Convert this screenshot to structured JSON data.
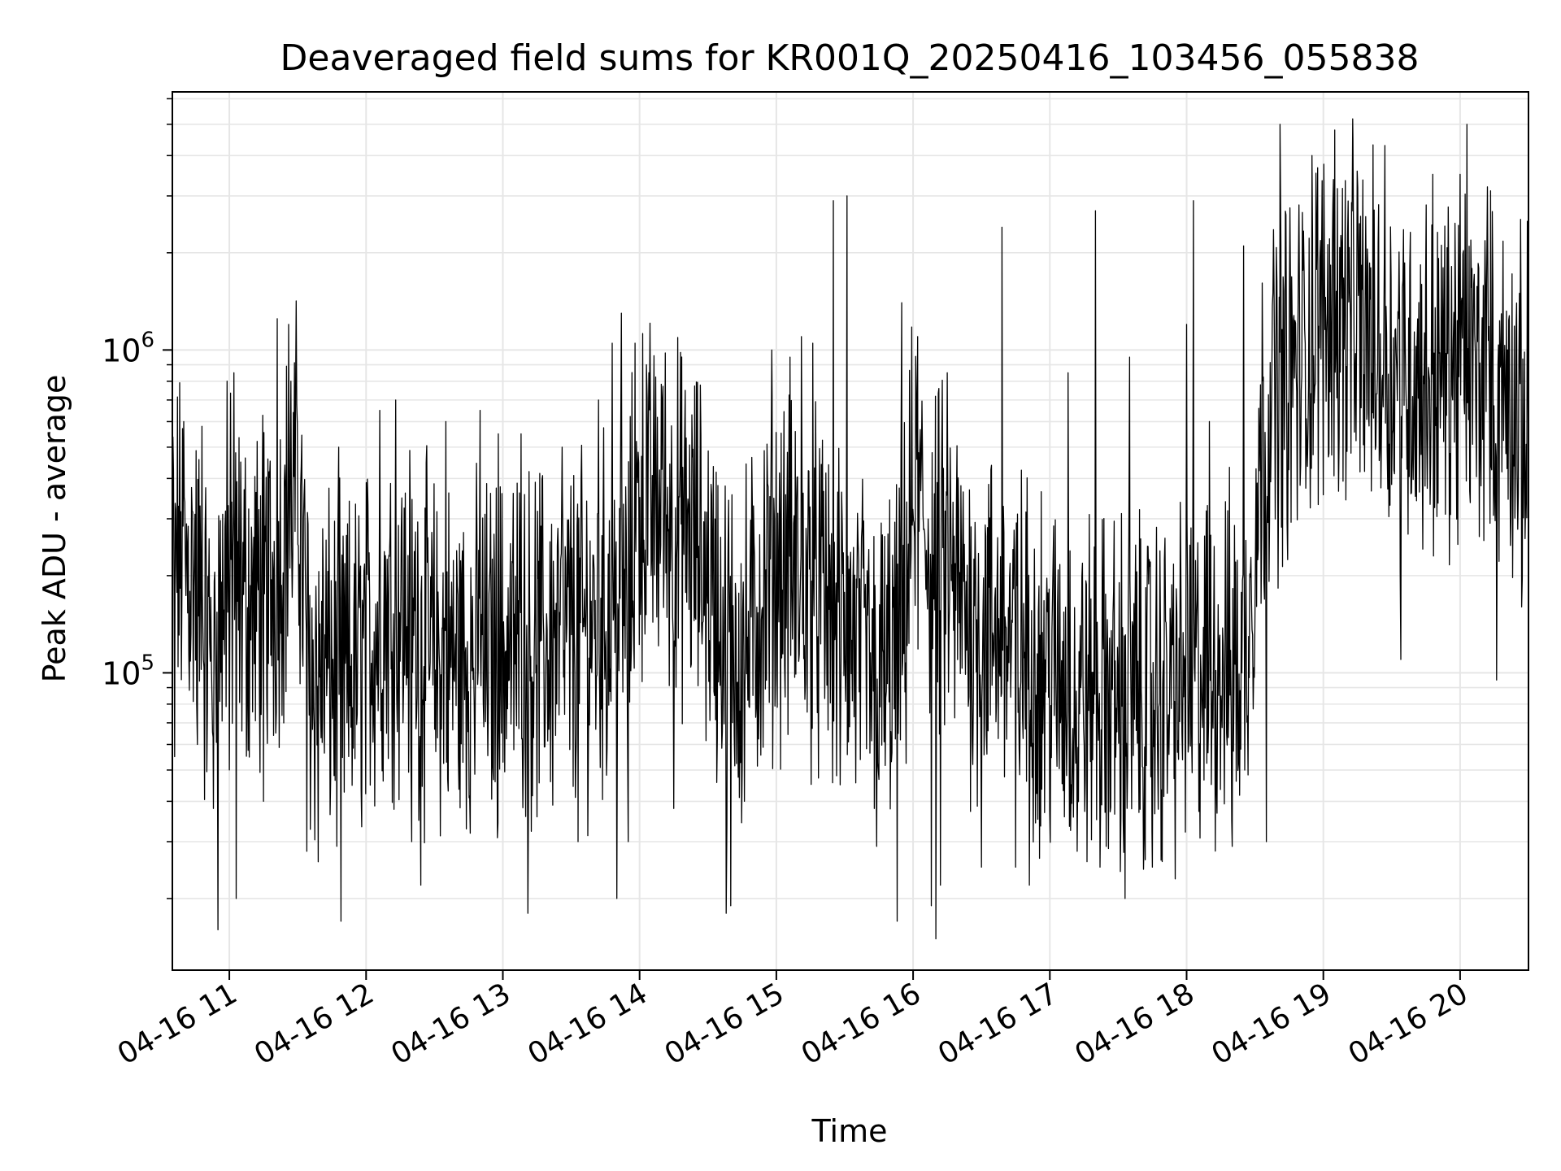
{
  "chart_data": {
    "type": "line",
    "title": "Deaveraged field sums for KR001Q_20250416_103456_055838",
    "xlabel": "Time",
    "ylabel": "Peak ADU - average",
    "x_scale": "time",
    "y_scale": "log",
    "xlim": [
      "2025-04-16T10:35:00",
      "2025-04-16T20:30:00"
    ],
    "ylim": [
      12000,
      6300000
    ],
    "grid": true,
    "x_ticks": [
      {
        "label": "04-16 11",
        "value": "2025-04-16T11:00:00"
      },
      {
        "label": "04-16 12",
        "value": "2025-04-16T12:00:00"
      },
      {
        "label": "04-16 13",
        "value": "2025-04-16T13:00:00"
      },
      {
        "label": "04-16 14",
        "value": "2025-04-16T14:00:00"
      },
      {
        "label": "04-16 15",
        "value": "2025-04-16T15:00:00"
      },
      {
        "label": "04-16 16",
        "value": "2025-04-16T16:00:00"
      },
      {
        "label": "04-16 17",
        "value": "2025-04-16T17:00:00"
      },
      {
        "label": "04-16 18",
        "value": "2025-04-16T18:00:00"
      },
      {
        "label": "04-16 19",
        "value": "2025-04-16T19:00:00"
      },
      {
        "label": "04-16 20",
        "value": "2025-04-16T20:00:00"
      }
    ],
    "y_ticks": [
      {
        "base": "10",
        "exp": "5",
        "value": 100000
      },
      {
        "base": "10",
        "exp": "6",
        "value": 1000000
      }
    ],
    "line_color": "#000000",
    "grid_color": "#e6e6e6",
    "series": [
      {
        "x": [
          "2025-04-16T10:35:00",
          "2025-04-16T10:45:00",
          "2025-04-16T10:50:00",
          "2025-04-16T10:55:00",
          "2025-04-16T11:00:00",
          "2025-04-16T11:10:00",
          "2025-04-16T11:20:00",
          "2025-04-16T11:30:00",
          "2025-04-16T11:35:00",
          "2025-04-16T11:40:00",
          "2025-04-16T11:50:00",
          "2025-04-16T12:00:00",
          "2025-04-16T12:10:00",
          "2025-04-16T12:20:00",
          "2025-04-16T12:30:00",
          "2025-04-16T12:40:00",
          "2025-04-16T12:50:00",
          "2025-04-16T13:00:00",
          "2025-04-16T13:15:00",
          "2025-04-16T13:30:00",
          "2025-04-16T13:45:00",
          "2025-04-16T13:55:00",
          "2025-04-16T14:00:00",
          "2025-04-16T14:15:00",
          "2025-04-16T14:25:00",
          "2025-04-16T14:35:00",
          "2025-04-16T14:45:00",
          "2025-04-16T15:00:00",
          "2025-04-16T15:15:00",
          "2025-04-16T15:30:00",
          "2025-04-16T15:45:00",
          "2025-04-16T15:55:00",
          "2025-04-16T16:00:00",
          "2025-04-16T16:10:00",
          "2025-04-16T16:25:00",
          "2025-04-16T16:40:00",
          "2025-04-16T17:00:00",
          "2025-04-16T17:15:00",
          "2025-04-16T17:30:00",
          "2025-04-16T17:45:00",
          "2025-04-16T18:00:00",
          "2025-04-16T18:15:00",
          "2025-04-16T18:25:00",
          "2025-04-16T18:35:00",
          "2025-04-16T18:50:00",
          "2025-04-16T19:00:00",
          "2025-04-16T19:15:00",
          "2025-04-16T19:30:00",
          "2025-04-16T19:45:00",
          "2025-04-16T20:00:00",
          "2025-04-16T20:15:00",
          "2025-04-16T20:30:00"
        ],
        "y": [
          250000,
          200000,
          120000,
          140000,
          200000,
          160000,
          200000,
          400000,
          100000,
          110000,
          90000,
          120000,
          160000,
          150000,
          110000,
          110000,
          110000,
          120000,
          120000,
          130000,
          150000,
          170000,
          350000,
          300000,
          250000,
          150000,
          110000,
          220000,
          180000,
          140000,
          90000,
          120000,
          350000,
          220000,
          150000,
          130000,
          100000,
          85000,
          85000,
          85000,
          90000,
          110000,
          100000,
          700000,
          900000,
          1300000,
          1200000,
          900000,
          800000,
          900000,
          800000,
          600000
        ],
        "spikes": [
          {
            "x": "2025-04-16T10:36:00",
            "y": 55000
          },
          {
            "x": "2025-04-16T10:40:00",
            "y": 600000
          },
          {
            "x": "2025-04-16T10:46:00",
            "y": 60000
          },
          {
            "x": "2025-04-16T10:48:00",
            "y": 580000
          },
          {
            "x": "2025-04-16T10:53:00",
            "y": 38000
          },
          {
            "x": "2025-04-16T10:55:00",
            "y": 16000
          },
          {
            "x": "2025-04-16T10:59:00",
            "y": 800000
          },
          {
            "x": "2025-04-16T11:00:00",
            "y": 50000
          },
          {
            "x": "2025-04-16T11:02:00",
            "y": 850000
          },
          {
            "x": "2025-04-16T11:03:00",
            "y": 20000
          },
          {
            "x": "2025-04-16T11:15:00",
            "y": 40000
          },
          {
            "x": "2025-04-16T11:21:00",
            "y": 1250000
          },
          {
            "x": "2025-04-16T11:26:00",
            "y": 1200000
          },
          {
            "x": "2025-04-16T11:27:00",
            "y": 800000
          },
          {
            "x": "2025-04-16T11:34:00",
            "y": 28000
          },
          {
            "x": "2025-04-16T11:39:00",
            "y": 26000
          },
          {
            "x": "2025-04-16T11:49:00",
            "y": 17000
          },
          {
            "x": "2025-04-16T11:48:00",
            "y": 500000
          },
          {
            "x": "2025-04-16T12:06:00",
            "y": 650000
          },
          {
            "x": "2025-04-16T12:13:00",
            "y": 700000
          },
          {
            "x": "2025-04-16T12:20:00",
            "y": 30000
          },
          {
            "x": "2025-04-16T12:24:00",
            "y": 22000
          },
          {
            "x": "2025-04-16T12:35:00",
            "y": 600000
          },
          {
            "x": "2025-04-16T12:50:00",
            "y": 650000
          },
          {
            "x": "2025-04-16T12:58:00",
            "y": 550000
          },
          {
            "x": "2025-04-16T13:08:00",
            "y": 550000
          },
          {
            "x": "2025-04-16T13:11:00",
            "y": 18000
          },
          {
            "x": "2025-04-16T13:26:00",
            "y": 500000
          },
          {
            "x": "2025-04-16T13:33:00",
            "y": 30000
          },
          {
            "x": "2025-04-16T13:42:00",
            "y": 700000
          },
          {
            "x": "2025-04-16T13:48:00",
            "y": 1050000
          },
          {
            "x": "2025-04-16T13:50:00",
            "y": 20000
          },
          {
            "x": "2025-04-16T13:52:00",
            "y": 1300000
          },
          {
            "x": "2025-04-16T13:55:00",
            "y": 30000
          },
          {
            "x": "2025-04-16T13:58:00",
            "y": 1050000
          },
          {
            "x": "2025-04-16T14:03:00",
            "y": 900000
          },
          {
            "x": "2025-04-16T14:10:00",
            "y": 700000
          },
          {
            "x": "2025-04-16T14:15:00",
            "y": 38000
          },
          {
            "x": "2025-04-16T14:20:00",
            "y": 750000
          },
          {
            "x": "2025-04-16T14:38:00",
            "y": 18000
          },
          {
            "x": "2025-04-16T14:40:00",
            "y": 19000
          },
          {
            "x": "2025-04-16T14:46:00",
            "y": 40000
          },
          {
            "x": "2025-04-16T14:58:00",
            "y": 1000000
          },
          {
            "x": "2025-04-16T15:06:00",
            "y": 950000
          },
          {
            "x": "2025-04-16T15:11:00",
            "y": 1100000
          },
          {
            "x": "2025-04-16T15:16:00",
            "y": 1050000
          },
          {
            "x": "2025-04-16T15:25:00",
            "y": 2900000
          },
          {
            "x": "2025-04-16T15:28:00",
            "y": 45000
          },
          {
            "x": "2025-04-16T15:31:00",
            "y": 3000000
          },
          {
            "x": "2025-04-16T15:43:00",
            "y": 38000
          },
          {
            "x": "2025-04-16T15:53:00",
            "y": 17000
          },
          {
            "x": "2025-04-16T15:55:00",
            "y": 1400000
          },
          {
            "x": "2025-04-16T16:02:00",
            "y": 1100000
          },
          {
            "x": "2025-04-16T16:08:00",
            "y": 19000
          },
          {
            "x": "2025-04-16T16:10:00",
            "y": 15000
          },
          {
            "x": "2025-04-16T16:12:00",
            "y": 22000
          },
          {
            "x": "2025-04-16T16:15:00",
            "y": 850000
          },
          {
            "x": "2025-04-16T16:30:00",
            "y": 25000
          },
          {
            "x": "2025-04-16T16:39:00",
            "y": 2400000
          },
          {
            "x": "2025-04-16T16:45:00",
            "y": 25000
          },
          {
            "x": "2025-04-16T16:51:00",
            "y": 22000
          },
          {
            "x": "2025-04-16T17:08:00",
            "y": 850000
          },
          {
            "x": "2025-04-16T17:12:00",
            "y": 28000
          },
          {
            "x": "2025-04-16T17:20:00",
            "y": 2700000
          },
          {
            "x": "2025-04-16T17:22:00",
            "y": 25000
          },
          {
            "x": "2025-04-16T17:33:00",
            "y": 20000
          },
          {
            "x": "2025-04-16T17:35:00",
            "y": 950000
          },
          {
            "x": "2025-04-16T17:45:00",
            "y": 25000
          },
          {
            "x": "2025-04-16T17:55:00",
            "y": 23000
          },
          {
            "x": "2025-04-16T18:00:00",
            "y": 1200000
          },
          {
            "x": "2025-04-16T18:03:00",
            "y": 2900000
          },
          {
            "x": "2025-04-16T18:10:00",
            "y": 600000
          },
          {
            "x": "2025-04-16T18:20:00",
            "y": 29000
          },
          {
            "x": "2025-04-16T18:25:00",
            "y": 2100000
          },
          {
            "x": "2025-04-16T18:35:00",
            "y": 30000
          },
          {
            "x": "2025-04-16T18:41:00",
            "y": 5000000
          },
          {
            "x": "2025-04-16T18:55:00",
            "y": 4000000
          },
          {
            "x": "2025-04-16T19:05:00",
            "y": 4800000
          },
          {
            "x": "2025-04-16T19:13:00",
            "y": 4500000
          },
          {
            "x": "2025-04-16T19:27:00",
            "y": 4300000
          },
          {
            "x": "2025-04-16T19:34:00",
            "y": 110000
          },
          {
            "x": "2025-04-16T19:48:00",
            "y": 3500000
          },
          {
            "x": "2025-04-16T20:00:00",
            "y": 3500000
          },
          {
            "x": "2025-04-16T20:03:00",
            "y": 5000000
          },
          {
            "x": "2025-04-16T20:12:00",
            "y": 3200000
          },
          {
            "x": "2025-04-16T20:16:00",
            "y": 95000
          },
          {
            "x": "2025-04-16T20:27:00",
            "y": 160000
          }
        ]
      }
    ]
  }
}
